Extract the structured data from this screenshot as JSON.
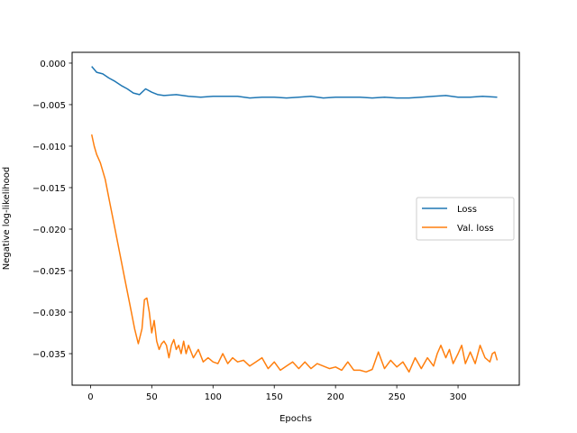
{
  "chart_data": {
    "type": "line",
    "title": "",
    "xlabel": "Epochs",
    "ylabel": "Negative log-likelihood",
    "xlim": [
      -15,
      350
    ],
    "ylim": [
      -0.0388,
      0.0013
    ],
    "xticks": [
      0,
      50,
      100,
      150,
      200,
      250,
      300
    ],
    "xtick_labels": [
      "0",
      "50",
      "100",
      "150",
      "200",
      "250",
      "300"
    ],
    "yticks": [
      0.0,
      -0.005,
      -0.01,
      -0.015,
      -0.02,
      -0.025,
      -0.03,
      -0.035
    ],
    "ytick_labels": [
      "0.000",
      "−0.005",
      "−0.010",
      "−0.015",
      "−0.020",
      "−0.025",
      "−0.030",
      "−0.035"
    ],
    "grid": false,
    "legend_position": "center-right",
    "series": [
      {
        "name": "Loss",
        "color": "#1f77b4",
        "x": [
          1,
          5,
          10,
          15,
          20,
          25,
          30,
          35,
          40,
          45,
          50,
          55,
          60,
          70,
          80,
          90,
          100,
          110,
          120,
          130,
          140,
          150,
          160,
          170,
          180,
          190,
          200,
          210,
          220,
          230,
          240,
          250,
          260,
          270,
          280,
          290,
          300,
          310,
          320,
          332
        ],
        "y": [
          -0.0004,
          -0.0011,
          -0.0013,
          -0.0018,
          -0.0022,
          -0.0027,
          -0.0031,
          -0.0036,
          -0.0038,
          -0.0031,
          -0.0035,
          -0.0038,
          -0.0039,
          -0.0038,
          -0.004,
          -0.0041,
          -0.004,
          -0.004,
          -0.004,
          -0.0042,
          -0.0041,
          -0.0041,
          -0.0042,
          -0.0041,
          -0.004,
          -0.0042,
          -0.0041,
          -0.0041,
          -0.0041,
          -0.0042,
          -0.0041,
          -0.0042,
          -0.0042,
          -0.0041,
          -0.004,
          -0.0039,
          -0.0041,
          -0.0041,
          -0.004,
          -0.0041
        ]
      },
      {
        "name": "Val. loss",
        "color": "#ff7f0e",
        "x": [
          1,
          3,
          5,
          8,
          12,
          16,
          20,
          24,
          28,
          32,
          36,
          39,
          42,
          44,
          46,
          48,
          50,
          52,
          54,
          56,
          58,
          60,
          62,
          64,
          66,
          68,
          70,
          72,
          74,
          76,
          78,
          80,
          84,
          88,
          92,
          96,
          100,
          104,
          108,
          112,
          116,
          120,
          125,
          130,
          135,
          140,
          145,
          150,
          155,
          160,
          165,
          170,
          175,
          180,
          185,
          190,
          195,
          200,
          205,
          210,
          215,
          220,
          225,
          230,
          235,
          240,
          245,
          250,
          255,
          260,
          265,
          270,
          275,
          280,
          283,
          286,
          290,
          293,
          296,
          300,
          303,
          306,
          310,
          314,
          318,
          322,
          326,
          328,
          330,
          332
        ],
        "y": [
          -0.0086,
          -0.01,
          -0.011,
          -0.012,
          -0.014,
          -0.017,
          -0.02,
          -0.023,
          -0.026,
          -0.029,
          -0.032,
          -0.0338,
          -0.032,
          -0.0285,
          -0.0283,
          -0.03,
          -0.0325,
          -0.031,
          -0.0335,
          -0.0345,
          -0.0338,
          -0.0335,
          -0.034,
          -0.0355,
          -0.034,
          -0.0333,
          -0.0345,
          -0.034,
          -0.035,
          -0.0335,
          -0.035,
          -0.034,
          -0.0355,
          -0.0345,
          -0.036,
          -0.0355,
          -0.036,
          -0.0362,
          -0.035,
          -0.0362,
          -0.0355,
          -0.036,
          -0.0358,
          -0.0365,
          -0.036,
          -0.0355,
          -0.0368,
          -0.036,
          -0.037,
          -0.0365,
          -0.036,
          -0.0368,
          -0.036,
          -0.0368,
          -0.0362,
          -0.0365,
          -0.0368,
          -0.0366,
          -0.037,
          -0.036,
          -0.037,
          -0.037,
          -0.0372,
          -0.0369,
          -0.0348,
          -0.0368,
          -0.0358,
          -0.0366,
          -0.036,
          -0.0372,
          -0.0355,
          -0.0368,
          -0.0355,
          -0.0365,
          -0.035,
          -0.034,
          -0.0355,
          -0.0345,
          -0.0362,
          -0.035,
          -0.034,
          -0.0362,
          -0.0348,
          -0.0362,
          -0.034,
          -0.0355,
          -0.036,
          -0.035,
          -0.0348,
          -0.0358
        ]
      }
    ]
  }
}
